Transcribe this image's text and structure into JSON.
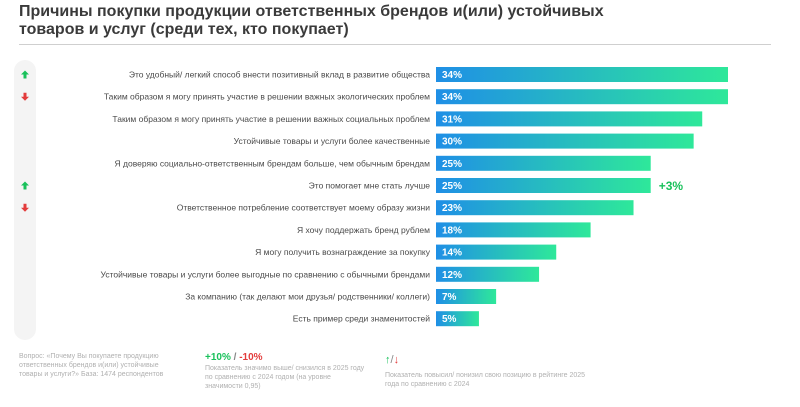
{
  "title": "Причины покупки продукции ответственных брендов и(или) устойчивых товаров и услуг (среди тех, кто покупает)",
  "chart_data": {
    "type": "bar",
    "orientation": "horizontal",
    "categories": [
      "Это удобный/ легкий способ внести позитивный вклад в развитие общества",
      "Таким образом я могу принять участие в решении важных экологических проблем",
      "Таким образом я могу принять участие в решении важных социальных проблем",
      "Устойчивые товары и услуги более качественные",
      "Я доверяю социально-ответственным брендам больше, чем обычным брендам",
      "Это помогает мне стать лучше",
      "Ответственное потребление соответствует моему образу жизни",
      "Я хочу поддержать бренд рублем",
      "Я могу получить вознаграждение за покупку",
      "Устойчивые товары и услуги более выгодные по сравнению с обычными брендами",
      "За компанию (так делают мои друзья/ родственники/ коллеги)",
      "Есть пример среди знаменитостей"
    ],
    "values": [
      34,
      34,
      31,
      30,
      25,
      25,
      23,
      18,
      14,
      12,
      7,
      5
    ],
    "value_labels": [
      "34%",
      "34%",
      "31%",
      "30%",
      "25%",
      "25%",
      "23%",
      "18%",
      "14%",
      "12%",
      "7%",
      "5%"
    ],
    "rank_change": [
      "up",
      "down",
      "",
      "",
      "",
      "up",
      "down",
      "",
      "",
      "",
      "",
      ""
    ],
    "significant_change": [
      "",
      "",
      "",
      "",
      "",
      "+3%",
      "",
      "",
      "",
      "",
      "",
      ""
    ],
    "xlim": [
      0,
      34
    ],
    "bar_gradient": [
      "#1f8fe6",
      "#2ee89a"
    ],
    "colors": {
      "up": "#19c15b",
      "down": "#e33b3b",
      "delta": "#19c15b"
    }
  },
  "footnotes": {
    "question": "Вопрос: «Почему Вы покупаете продукцию ответственных брендов и(или) устойчивые товары и услуги?» База: 1474 респондентов",
    "pct_legend_plus": "+10%",
    "pct_legend_slash": " / ",
    "pct_legend_minus": "-10%",
    "pct_note": "Показатель значимо выше/ снизился в 2025 году по сравнению с 2024 годом (на уровне значимости 0,95)",
    "arrow_legend_up": "↑",
    "arrow_legend_slash": "/",
    "arrow_legend_down": "↓",
    "arrow_note": "Показатель повысил/ понизил свою позицию в рейтинге 2025 года по сравнению с 2024"
  }
}
